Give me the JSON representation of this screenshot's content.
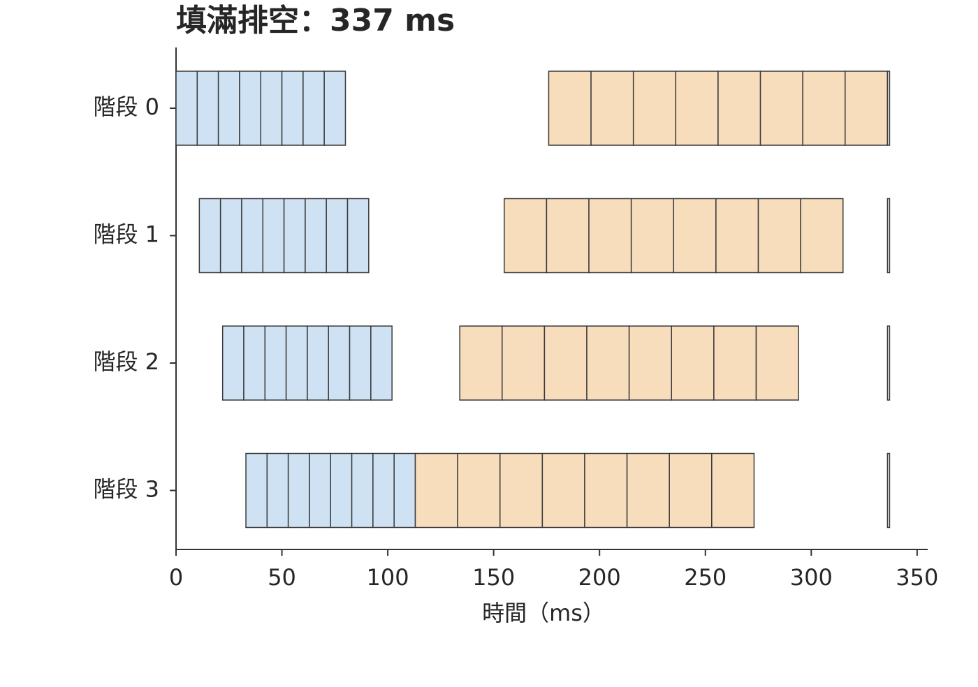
{
  "chart_data": {
    "type": "gantt",
    "title": "填滿排空：337 ms",
    "x_label": "時間（ms）",
    "xlim": [
      0,
      355
    ],
    "xticks": [
      0,
      50,
      100,
      150,
      200,
      250,
      300,
      350
    ],
    "colors": {
      "forward": "#cfe2f3",
      "backward": "#f8ddbd",
      "update": "#eeeeee"
    },
    "rows": [
      {
        "label": "階段 0",
        "forward": [
          [
            0,
            10
          ],
          [
            10,
            20
          ],
          [
            20,
            30
          ],
          [
            30,
            40
          ],
          [
            40,
            50
          ],
          [
            50,
            60
          ],
          [
            60,
            70
          ],
          [
            70,
            80
          ]
        ],
        "backward": [
          [
            176,
            196
          ],
          [
            196,
            216
          ],
          [
            216,
            236
          ],
          [
            236,
            256
          ],
          [
            256,
            276
          ],
          [
            276,
            296
          ],
          [
            296,
            316
          ],
          [
            316,
            336
          ]
        ],
        "update": [
          336,
          337
        ]
      },
      {
        "label": "階段 1",
        "forward": [
          [
            11,
            21
          ],
          [
            21,
            31
          ],
          [
            31,
            41
          ],
          [
            41,
            51
          ],
          [
            51,
            61
          ],
          [
            61,
            71
          ],
          [
            71,
            81
          ],
          [
            81,
            91
          ]
        ],
        "backward": [
          [
            155,
            175
          ],
          [
            175,
            195
          ],
          [
            195,
            215
          ],
          [
            215,
            235
          ],
          [
            235,
            255
          ],
          [
            255,
            275
          ],
          [
            275,
            295
          ],
          [
            295,
            315
          ]
        ],
        "update": [
          336,
          337
        ]
      },
      {
        "label": "階段 2",
        "forward": [
          [
            22,
            32
          ],
          [
            32,
            42
          ],
          [
            42,
            52
          ],
          [
            52,
            62
          ],
          [
            62,
            72
          ],
          [
            72,
            82
          ],
          [
            82,
            92
          ],
          [
            92,
            102
          ]
        ],
        "backward": [
          [
            134,
            154
          ],
          [
            154,
            174
          ],
          [
            174,
            194
          ],
          [
            194,
            214
          ],
          [
            214,
            234
          ],
          [
            234,
            254
          ],
          [
            254,
            274
          ],
          [
            274,
            294
          ]
        ],
        "update": [
          336,
          337
        ]
      },
      {
        "label": "階段 3",
        "forward": [
          [
            33,
            43
          ],
          [
            43,
            53
          ],
          [
            53,
            63
          ],
          [
            63,
            73
          ],
          [
            73,
            83
          ],
          [
            83,
            93
          ],
          [
            93,
            103
          ],
          [
            103,
            113
          ]
        ],
        "backward": [
          [
            113,
            133
          ],
          [
            133,
            153
          ],
          [
            153,
            173
          ],
          [
            173,
            193
          ],
          [
            193,
            213
          ],
          [
            213,
            233
          ],
          [
            233,
            253
          ],
          [
            253,
            273
          ]
        ],
        "update": [
          336,
          337
        ]
      }
    ]
  }
}
